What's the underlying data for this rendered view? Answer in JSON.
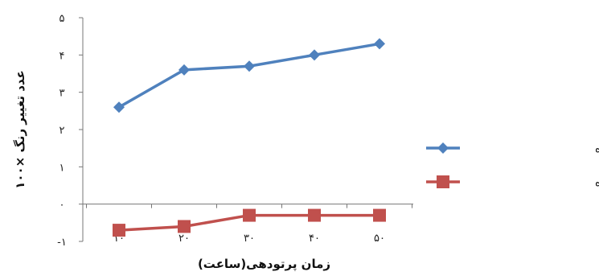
{
  "chart_data": {
    "type": "line",
    "categories": [
      "۱۰",
      "۲۰",
      "۳۰",
      "۴۰",
      "۵۰"
    ],
    "series": [
      {
        "name": "لیگنین تیمار نشده",
        "values": [
          2.6,
          3.6,
          3.7,
          4.0,
          4.3
        ],
        "color": "#4f81bd",
        "marker": "diamond"
      },
      {
        "name": "لیگنین متیل دار شده",
        "values": [
          -0.7,
          -0.6,
          -0.3,
          -0.3,
          -0.3
        ],
        "color": "#c0504d",
        "marker": "square"
      }
    ],
    "xlabel": "زمان پرتودهی(ساعت)",
    "ylabel": "عدد تغییر رنگ ×۱۰۰",
    "ylim": [
      -1,
      5
    ],
    "yticks": [
      {
        "value": 5,
        "label": "۵"
      },
      {
        "value": 4,
        "label": "۴"
      },
      {
        "value": 3,
        "label": "۳"
      },
      {
        "value": 2,
        "label": "۲"
      },
      {
        "value": 1,
        "label": "۱"
      },
      {
        "value": 0,
        "label": "۰"
      },
      {
        "value": -1,
        "label": "-۱"
      }
    ],
    "grid": false,
    "legend_position": "right"
  }
}
